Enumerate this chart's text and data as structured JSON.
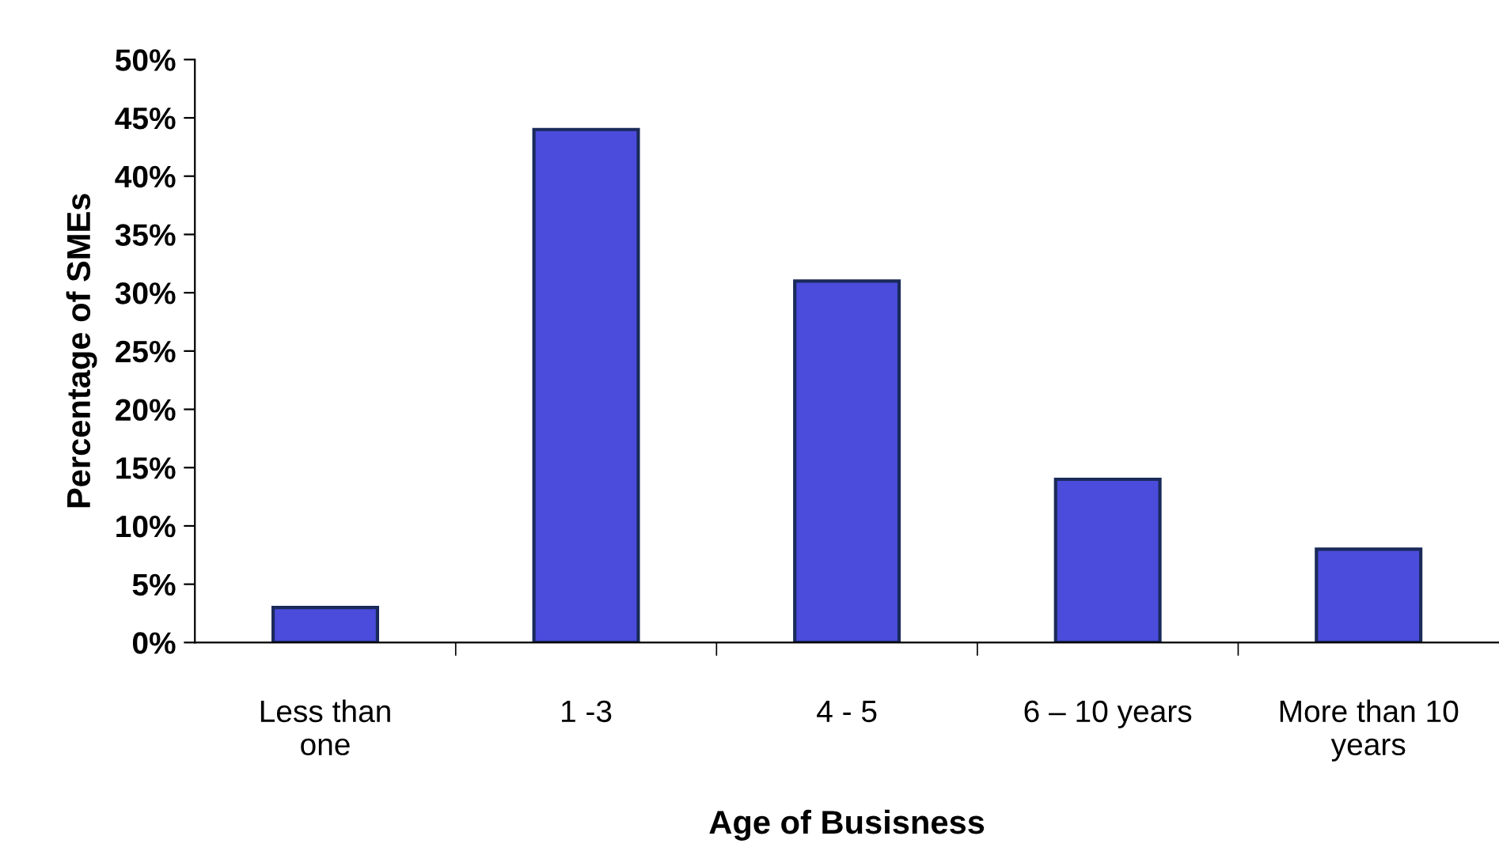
{
  "chart_data": {
    "type": "bar",
    "xlabel": "Age of Busisness",
    "ylabel": "Percentage of SMEs",
    "categories": [
      "Less than\none",
      "1 -3",
      "4 - 5",
      "6 – 10 years",
      "More than 10\nyears"
    ],
    "values": [
      3,
      44,
      31,
      14,
      8
    ],
    "color": "#4b4bdc",
    "ylim": [
      0,
      50
    ],
    "yticks": [
      {
        "value": 0,
        "label": "0%"
      },
      {
        "value": 5,
        "label": "5%"
      },
      {
        "value": 10,
        "label": "10%"
      },
      {
        "value": 15,
        "label": "15%"
      },
      {
        "value": 20,
        "label": "20%"
      },
      {
        "value": 25,
        "label": "25%"
      },
      {
        "value": 30,
        "label": "30%"
      },
      {
        "value": 35,
        "label": "35%"
      },
      {
        "value": 40,
        "label": "40%"
      },
      {
        "value": 45,
        "label": "45%"
      },
      {
        "value": 50,
        "label": "50%"
      }
    ],
    "grid": false,
    "legend": false
  }
}
